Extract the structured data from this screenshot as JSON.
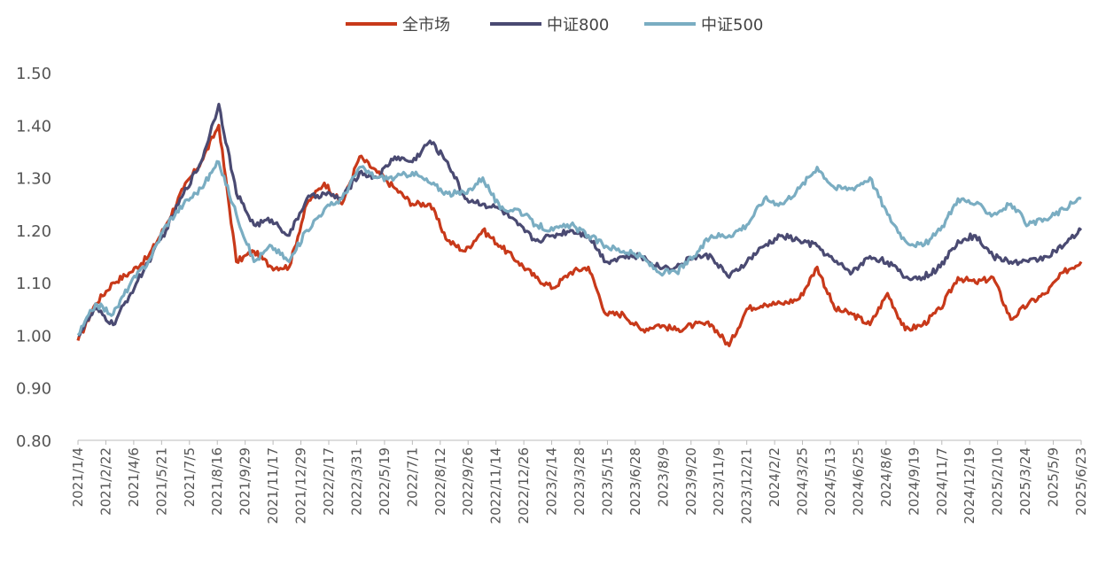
{
  "chart_data": {
    "type": "line",
    "title": "",
    "xlabel": "",
    "ylabel": "",
    "ylim": [
      0.8,
      1.5
    ],
    "yticks": [
      "1.50",
      "1.40",
      "1.30",
      "1.20",
      "1.10",
      "1.00",
      "0.90",
      "0.80"
    ],
    "grid": false,
    "legend_position": "top-center",
    "x_tick_labels": [
      "2021/1/4",
      "2021/2/22",
      "2021/4/6",
      "2021/5/21",
      "2021/7/5",
      "2021/8/16",
      "2021/9/29",
      "2021/11/17",
      "2021/12/29",
      "2022/2/17",
      "2022/3/31",
      "2022/5/19",
      "2022/7/1",
      "2022/8/12",
      "2022/9/26",
      "2022/11/14",
      "2022/12/26",
      "2023/2/14",
      "2023/3/28",
      "2023/5/15",
      "2023/6/28",
      "2023/8/9",
      "2023/9/20",
      "2023/11/9",
      "2023/12/21",
      "2024/2/2",
      "2024/3/25",
      "2024/5/13",
      "2024/6/25",
      "2024/8/6",
      "2024/9/19",
      "2024/11/7",
      "2024/12/19",
      "2025/2/10",
      "2025/3/24",
      "2025/5/9",
      "2025/6/23"
    ],
    "series": [
      {
        "name": "全市场",
        "color": "#C8391A",
        "values": [
          0.99,
          1.06,
          1.1,
          1.12,
          1.15,
          1.21,
          1.28,
          1.33,
          1.4,
          1.14,
          1.16,
          1.13,
          1.13,
          1.25,
          1.29,
          1.25,
          1.34,
          1.31,
          1.28,
          1.25,
          1.25,
          1.18,
          1.16,
          1.2,
          1.17,
          1.14,
          1.11,
          1.09,
          1.12,
          1.13,
          1.04,
          1.04,
          1.01,
          1.02,
          1.01,
          1.02,
          1.02,
          0.98,
          1.05,
          1.06,
          1.06,
          1.07,
          1.13,
          1.05,
          1.04,
          1.02,
          1.08,
          1.01,
          1.02,
          1.05,
          1.11,
          1.1,
          1.11,
          1.03,
          1.06,
          1.08,
          1.12,
          1.14
        ]
      },
      {
        "name": "中证800",
        "color": "#4A4A72",
        "values": [
          1.0,
          1.05,
          1.02,
          1.08,
          1.14,
          1.2,
          1.27,
          1.33,
          1.44,
          1.27,
          1.21,
          1.22,
          1.19,
          1.26,
          1.27,
          1.26,
          1.31,
          1.3,
          1.34,
          1.33,
          1.37,
          1.33,
          1.26,
          1.25,
          1.24,
          1.21,
          1.18,
          1.19,
          1.2,
          1.19,
          1.14,
          1.15,
          1.15,
          1.13,
          1.13,
          1.15,
          1.15,
          1.11,
          1.14,
          1.17,
          1.19,
          1.18,
          1.17,
          1.14,
          1.12,
          1.15,
          1.14,
          1.11,
          1.11,
          1.13,
          1.18,
          1.19,
          1.15,
          1.14,
          1.14,
          1.15,
          1.17,
          1.2
        ]
      },
      {
        "name": "中证500",
        "color": "#7AADC2",
        "values": [
          1.0,
          1.06,
          1.04,
          1.1,
          1.14,
          1.21,
          1.25,
          1.28,
          1.33,
          1.23,
          1.14,
          1.17,
          1.14,
          1.2,
          1.24,
          1.26,
          1.32,
          1.3,
          1.3,
          1.31,
          1.29,
          1.27,
          1.27,
          1.3,
          1.24,
          1.24,
          1.21,
          1.2,
          1.21,
          1.19,
          1.17,
          1.16,
          1.15,
          1.12,
          1.12,
          1.15,
          1.19,
          1.19,
          1.21,
          1.26,
          1.25,
          1.28,
          1.32,
          1.28,
          1.28,
          1.3,
          1.23,
          1.18,
          1.17,
          1.2,
          1.26,
          1.25,
          1.23,
          1.25,
          1.21,
          1.22,
          1.24,
          1.26
        ]
      }
    ]
  }
}
